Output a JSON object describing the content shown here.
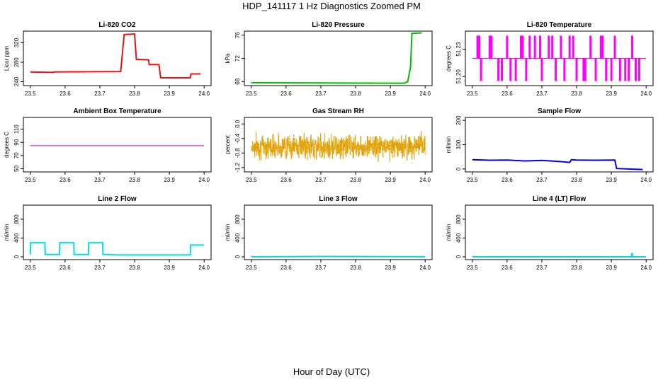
{
  "title": "HDP_141117  1 Hz Diagnostics Zoomed PM",
  "xlabel": "Hour of Day (UTC)",
  "chart_data": [
    {
      "type": "line",
      "title": "Li-820 CO2",
      "ylabel": "Licor ppm",
      "color": "#ee1111",
      "xlim": [
        23.48,
        24.02
      ],
      "ylim": [
        232,
        344
      ],
      "xticks": [
        23.5,
        23.6,
        23.7,
        23.8,
        23.9,
        24.0
      ],
      "xtick_labels": [
        "23.5",
        "23.6",
        "23.7",
        "23.8",
        "23.9",
        "24.0"
      ],
      "yticks": [
        240,
        280,
        320
      ],
      "ytick_labels": [
        "240",
        "280",
        "320"
      ],
      "series": [
        {
          "name": "CO2",
          "x": [
            23.5,
            23.565,
            23.566,
            23.76,
            23.765,
            23.77,
            23.8,
            23.805,
            23.84,
            23.842,
            23.87,
            23.875,
            23.96,
            23.962,
            23.99
          ],
          "y": [
            260,
            259,
            260,
            261,
            300,
            337,
            338,
            286,
            285,
            275,
            275,
            248,
            248,
            256,
            256
          ]
        }
      ]
    },
    {
      "type": "line",
      "title": "Li-820 Pressure",
      "ylabel": "kPa",
      "color": "#00bb00",
      "xlim": [
        23.48,
        24.02
      ],
      "ylim": [
        67.3,
        76.7
      ],
      "xticks": [
        23.5,
        23.6,
        23.7,
        23.8,
        23.9,
        24.0
      ],
      "xtick_labels": [
        "23.5",
        "23.6",
        "23.7",
        "23.8",
        "23.9",
        "24.0"
      ],
      "yticks": [
        68,
        72,
        76
      ],
      "ytick_labels": [
        "68",
        "72",
        "76"
      ],
      "series": [
        {
          "name": "Pressure",
          "x": [
            23.5,
            23.7,
            23.94,
            23.95,
            23.958,
            23.962,
            23.99
          ],
          "y": [
            67.8,
            67.75,
            67.72,
            68.0,
            70.5,
            76.3,
            76.4
          ]
        }
      ]
    },
    {
      "type": "line",
      "title": "Li-820 Temperature",
      "ylabel": "degrees C",
      "color": "#ff00ff",
      "xlim": [
        23.48,
        24.02
      ],
      "ylim": [
        51.19,
        51.25
      ],
      "xticks": [
        23.5,
        23.6,
        23.7,
        23.8,
        23.9,
        24.0
      ],
      "xtick_labels": [
        "23.5",
        "23.6",
        "23.7",
        "23.8",
        "23.9",
        "24.0"
      ],
      "yticks": [
        51.2,
        51.23
      ],
      "ytick_labels": [
        "51.20",
        "51.23"
      ],
      "baseline": 51.22,
      "high": 51.245,
      "low": 51.195,
      "spikes": [
        {
          "x": 23.515,
          "dir": "up"
        },
        {
          "x": 23.52,
          "dir": "up"
        },
        {
          "x": 23.525,
          "dir": "down"
        },
        {
          "x": 23.55,
          "dir": "up"
        },
        {
          "x": 23.555,
          "dir": "up"
        },
        {
          "x": 23.575,
          "dir": "down"
        },
        {
          "x": 23.585,
          "dir": "down"
        },
        {
          "x": 23.6,
          "dir": "up"
        },
        {
          "x": 23.61,
          "dir": "down"
        },
        {
          "x": 23.625,
          "dir": "down"
        },
        {
          "x": 23.64,
          "dir": "up"
        },
        {
          "x": 23.645,
          "dir": "up"
        },
        {
          "x": 23.655,
          "dir": "down"
        },
        {
          "x": 23.665,
          "dir": "up"
        },
        {
          "x": 23.68,
          "dir": "up"
        },
        {
          "x": 23.695,
          "dir": "up"
        },
        {
          "x": 23.7,
          "dir": "down"
        },
        {
          "x": 23.72,
          "dir": "up"
        },
        {
          "x": 23.73,
          "dir": "up"
        },
        {
          "x": 23.74,
          "dir": "down"
        },
        {
          "x": 23.755,
          "dir": "up"
        },
        {
          "x": 23.765,
          "dir": "down"
        },
        {
          "x": 23.78,
          "dir": "up"
        },
        {
          "x": 23.79,
          "dir": "up"
        },
        {
          "x": 23.8,
          "dir": "down"
        },
        {
          "x": 23.82,
          "dir": "down"
        },
        {
          "x": 23.825,
          "dir": "down"
        },
        {
          "x": 23.84,
          "dir": "up"
        },
        {
          "x": 23.855,
          "dir": "down"
        },
        {
          "x": 23.87,
          "dir": "up"
        },
        {
          "x": 23.875,
          "dir": "up"
        },
        {
          "x": 23.885,
          "dir": "down"
        },
        {
          "x": 23.9,
          "dir": "down"
        },
        {
          "x": 23.91,
          "dir": "up"
        },
        {
          "x": 23.925,
          "dir": "down"
        },
        {
          "x": 23.94,
          "dir": "down"
        },
        {
          "x": 23.95,
          "dir": "down"
        },
        {
          "x": 23.96,
          "dir": "up"
        },
        {
          "x": 23.97,
          "dir": "down"
        },
        {
          "x": 23.98,
          "dir": "down"
        }
      ]
    },
    {
      "type": "line",
      "title": "Ambient Box Temperature",
      "ylabel": "degrees C",
      "color": "#cc00cc",
      "xlim": [
        23.48,
        24.02
      ],
      "ylim": [
        45,
        128
      ],
      "xticks": [
        23.5,
        23.6,
        23.7,
        23.8,
        23.9,
        24.0
      ],
      "xtick_labels": [
        "23.5",
        "23.6",
        "23.7",
        "23.8",
        "23.9",
        "24.0"
      ],
      "yticks": [
        50,
        70,
        90,
        110
      ],
      "ytick_labels": [
        "50",
        "70",
        "90",
        "110"
      ],
      "series": [
        {
          "name": "Box Temp",
          "x": [
            23.5,
            24.0
          ],
          "y": [
            85,
            85
          ]
        }
      ]
    },
    {
      "type": "scatter",
      "title": "Gas Stream RH",
      "ylabel": "percent",
      "color": "#e0a000",
      "xlim": [
        23.48,
        24.02
      ],
      "ylim": [
        -1.32,
        0.18
      ],
      "xticks": [
        23.5,
        23.6,
        23.7,
        23.8,
        23.9,
        24.0
      ],
      "xtick_labels": [
        "23.5",
        "23.6",
        "23.7",
        "23.8",
        "23.9",
        "24.0"
      ],
      "yticks": [
        -1.2,
        -0.8,
        -0.4,
        0.0
      ],
      "ytick_labels": [
        "-1.2",
        "-0.8",
        "-0.4",
        "0.0"
      ],
      "noise": {
        "x_start": 23.5,
        "x_end": 24.0,
        "n": 900,
        "mean": -0.62,
        "spread": 0.32,
        "min": -1.28,
        "max": 0.1,
        "seed": 7
      }
    },
    {
      "type": "line",
      "title": "Sample Flow",
      "ylabel": "ml/min",
      "color": "#0000ee",
      "xlim": [
        23.48,
        24.02
      ],
      "ylim": [
        -12,
        212
      ],
      "xticks": [
        23.5,
        23.6,
        23.7,
        23.8,
        23.9,
        24.0
      ],
      "xtick_labels": [
        "23.5",
        "23.6",
        "23.7",
        "23.8",
        "23.9",
        "24.0"
      ],
      "yticks": [
        0,
        100,
        200
      ],
      "ytick_labels": [
        "0",
        "100",
        "200"
      ],
      "series": [
        {
          "name": "Sample Flow",
          "x": [
            23.5,
            23.55,
            23.6,
            23.65,
            23.7,
            23.75,
            23.78,
            23.785,
            23.8,
            23.85,
            23.91,
            23.915,
            23.95,
            23.99
          ],
          "y": [
            38,
            36,
            37,
            33,
            35,
            31,
            27,
            38,
            37,
            36,
            37,
            2,
            0,
            -2
          ]
        }
      ]
    },
    {
      "type": "line",
      "title": "Line 2 Flow",
      "ylabel": "ml/min",
      "color": "#00dddd",
      "xlim": [
        23.48,
        24.02
      ],
      "ylim": [
        -60,
        1100
      ],
      "xticks": [
        23.5,
        23.6,
        23.7,
        23.8,
        23.9,
        24.0
      ],
      "xtick_labels": [
        "23.5",
        "23.6",
        "23.7",
        "23.8",
        "23.9",
        "24.0"
      ],
      "yticks": [
        0,
        400,
        800
      ],
      "ytick_labels": [
        "0",
        "400",
        "800"
      ],
      "series": [
        {
          "name": "Line 2",
          "x": [
            23.5,
            23.501,
            23.542,
            23.543,
            23.584,
            23.585,
            23.625,
            23.626,
            23.667,
            23.668,
            23.708,
            23.709,
            23.75,
            23.96,
            23.961,
            24.0
          ],
          "y": [
            50,
            300,
            300,
            50,
            50,
            300,
            300,
            50,
            50,
            300,
            300,
            50,
            40,
            40,
            250,
            250
          ]
        }
      ]
    },
    {
      "type": "line",
      "title": "Line 3 Flow",
      "ylabel": "ml/min",
      "color": "#00dddd",
      "xlim": [
        23.48,
        24.02
      ],
      "ylim": [
        -60,
        1100
      ],
      "xticks": [
        23.5,
        23.6,
        23.7,
        23.8,
        23.9,
        24.0
      ],
      "xtick_labels": [
        "23.5",
        "23.6",
        "23.7",
        "23.8",
        "23.9",
        "24.0"
      ],
      "yticks": [
        0,
        400,
        800
      ],
      "ytick_labels": [
        "0",
        "400",
        "800"
      ],
      "series": [
        {
          "name": "Line 3",
          "x": [
            23.5,
            23.6,
            23.7,
            23.8,
            23.9,
            24.0
          ],
          "y": [
            0,
            5,
            8,
            6,
            4,
            2
          ]
        }
      ]
    },
    {
      "type": "line",
      "title": "Line 4 (LT) Flow",
      "ylabel": "ml/min",
      "color": "#00dddd",
      "xlim": [
        23.48,
        24.02
      ],
      "ylim": [
        -60,
        1100
      ],
      "xticks": [
        23.5,
        23.6,
        23.7,
        23.8,
        23.9,
        24.0
      ],
      "xtick_labels": [
        "23.5",
        "23.6",
        "23.7",
        "23.8",
        "23.9",
        "24.0"
      ],
      "yticks": [
        0,
        400,
        800
      ],
      "ytick_labels": [
        "0",
        "400",
        "800"
      ],
      "series": [
        {
          "name": "Line 4",
          "x": [
            23.5,
            23.958,
            23.959,
            23.96,
            23.961,
            24.0
          ],
          "y": [
            0,
            0,
            70,
            70,
            0,
            0
          ]
        }
      ]
    }
  ]
}
